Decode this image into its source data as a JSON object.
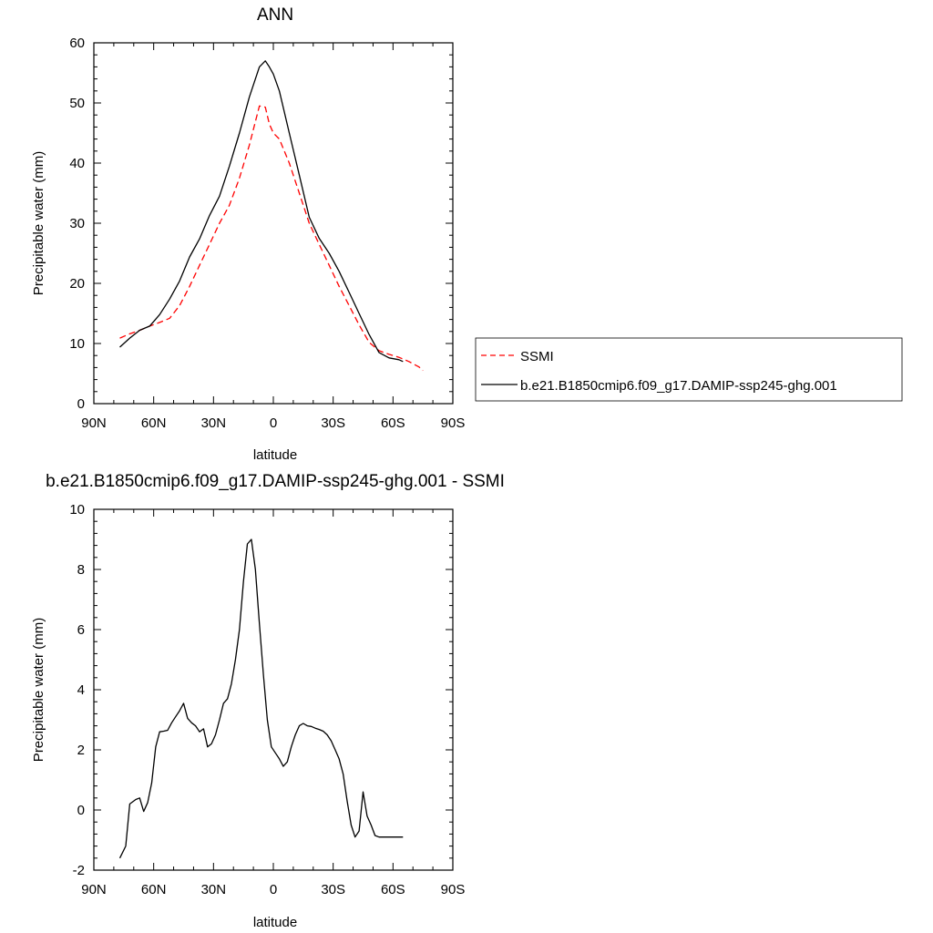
{
  "chart_data": [
    {
      "type": "line",
      "title": "ANN",
      "xlabel": "latitude",
      "ylabel": "Precipitable water (mm)",
      "xlim": [
        90,
        -90
      ],
      "ylim": [
        0,
        60
      ],
      "x_ticks": [
        {
          "value": 90,
          "label": "90N"
        },
        {
          "value": 60,
          "label": "60N"
        },
        {
          "value": 30,
          "label": "30N"
        },
        {
          "value": 0,
          "label": "0"
        },
        {
          "value": -30,
          "label": "30S"
        },
        {
          "value": -60,
          "label": "60S"
        },
        {
          "value": -90,
          "label": "90S"
        }
      ],
      "y_ticks": [
        {
          "value": 0,
          "label": "0"
        },
        {
          "value": 10,
          "label": "10"
        },
        {
          "value": 20,
          "label": "20"
        },
        {
          "value": 30,
          "label": "30"
        },
        {
          "value": 40,
          "label": "40"
        },
        {
          "value": 50,
          "label": "50"
        },
        {
          "value": 60,
          "label": "60"
        }
      ],
      "grid": false,
      "legend": "right",
      "series": [
        {
          "name": "SSMI",
          "color": "#ff0000",
          "dash": "dashed",
          "x": [
            77,
            72,
            67,
            62,
            57,
            52,
            47,
            42,
            37,
            32,
            27,
            22,
            17,
            12,
            7,
            4,
            2,
            0,
            -3,
            -8,
            -13,
            -18,
            -23,
            -28,
            -33,
            -38,
            -43,
            -48,
            -53,
            -58,
            -63,
            -68,
            -73,
            -75
          ],
          "y": [
            10.9,
            11.6,
            12.2,
            12.9,
            13.5,
            14.2,
            16.3,
            19.5,
            23.0,
            26.5,
            30.0,
            33.0,
            37.5,
            43.0,
            49.5,
            49.3,
            46.5,
            45.0,
            44.0,
            40.0,
            35.0,
            30.0,
            26.5,
            23.0,
            19.5,
            16.3,
            13.1,
            10.2,
            8.8,
            8.2,
            7.7,
            7.0,
            6.1,
            5.5
          ]
        },
        {
          "name": "b.e21.B1850cmip6.f09_g17.DAMIP-ssp245-ghg.001",
          "color": "#000000",
          "dash": "solid",
          "x": [
            77,
            72,
            67,
            62,
            57,
            52,
            47,
            42,
            37,
            32,
            27,
            22,
            17,
            12,
            7,
            4,
            2,
            0,
            -3,
            -8,
            -13,
            -18,
            -23,
            -28,
            -33,
            -38,
            -43,
            -48,
            -53,
            -58,
            -63,
            -65
          ],
          "y": [
            9.4,
            10.9,
            12.2,
            12.9,
            14.8,
            17.4,
            20.4,
            24.4,
            27.4,
            31.3,
            34.5,
            39.5,
            45.0,
            51.0,
            56.0,
            57.0,
            56.0,
            54.8,
            52.0,
            45.0,
            38.0,
            31.0,
            27.5,
            25.0,
            22.0,
            18.5,
            15.0,
            11.5,
            8.5,
            7.6,
            7.3,
            7.0
          ]
        }
      ]
    },
    {
      "type": "line",
      "title": "b.e21.B1850cmip6.f09_g17.DAMIP-ssp245-ghg.001 - SSMI",
      "xlabel": "latitude",
      "ylabel": "Precipitable water (mm)",
      "xlim": [
        90,
        -90
      ],
      "ylim": [
        -2,
        10
      ],
      "x_ticks": [
        {
          "value": 90,
          "label": "90N"
        },
        {
          "value": 60,
          "label": "60N"
        },
        {
          "value": 30,
          "label": "30N"
        },
        {
          "value": 0,
          "label": "0"
        },
        {
          "value": -30,
          "label": "30S"
        },
        {
          "value": -60,
          "label": "60S"
        },
        {
          "value": -90,
          "label": "90S"
        }
      ],
      "y_ticks": [
        {
          "value": -2,
          "label": "-2"
        },
        {
          "value": 0,
          "label": "0"
        },
        {
          "value": 2,
          "label": "2"
        },
        {
          "value": 4,
          "label": "4"
        },
        {
          "value": 6,
          "label": "6"
        },
        {
          "value": 8,
          "label": "8"
        },
        {
          "value": 10,
          "label": "10"
        }
      ],
      "grid": false,
      "series": [
        {
          "color": "#000000",
          "dash": "solid",
          "x": [
            77,
            74,
            72,
            69,
            67,
            65,
            63,
            61,
            59,
            57,
            55,
            53,
            51,
            49,
            47,
            45,
            43,
            41,
            39,
            37,
            35,
            33,
            31,
            29,
            27,
            25,
            23,
            21,
            19,
            17,
            15,
            13,
            11,
            9,
            7,
            5,
            3,
            1,
            -1,
            -3,
            -5,
            -7,
            -9,
            -11,
            -13,
            -15,
            -17,
            -19,
            -21,
            -23,
            -25,
            -27,
            -29,
            -31,
            -33,
            -35,
            -37,
            -39,
            -41,
            -43,
            -45,
            -47,
            -49,
            -51,
            -53,
            -55,
            -57,
            -59,
            -61,
            -63,
            -65
          ],
          "y": [
            -1.6,
            -1.2,
            0.2,
            0.35,
            0.4,
            -0.05,
            0.25,
            0.9,
            2.1,
            2.6,
            2.62,
            2.65,
            2.9,
            3.1,
            3.3,
            3.55,
            3.05,
            2.9,
            2.8,
            2.6,
            2.7,
            2.1,
            2.2,
            2.5,
            3.0,
            3.55,
            3.7,
            4.2,
            5.0,
            6.0,
            7.6,
            8.85,
            9.0,
            8.0,
            6.2,
            4.5,
            3.0,
            2.1,
            1.9,
            1.7,
            1.45,
            1.6,
            2.1,
            2.5,
            2.8,
            2.88,
            2.8,
            2.78,
            2.72,
            2.68,
            2.62,
            2.5,
            2.3,
            2.0,
            1.7,
            1.2,
            0.3,
            -0.5,
            -0.9,
            -0.7,
            0.6,
            -0.2,
            -0.5,
            -0.85,
            -0.9,
            -0.9,
            -0.9,
            -0.9,
            -0.9,
            -0.9,
            -0.9
          ]
        }
      ]
    }
  ]
}
